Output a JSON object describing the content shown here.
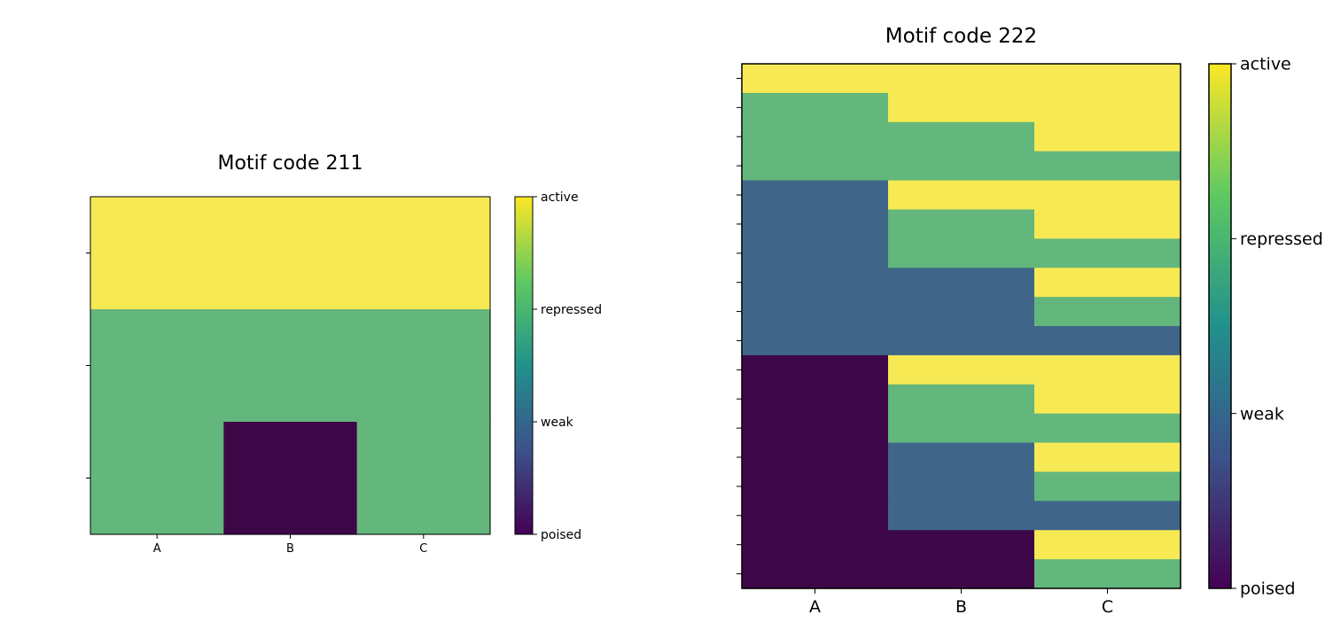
{
  "chart_data": [
    {
      "type": "heatmap",
      "title": "Motif code 211",
      "xlabel": "",
      "ylabel": "",
      "x_categories": [
        "A",
        "B",
        "C"
      ],
      "rows": 3,
      "values": [
        [
          3,
          3,
          3
        ],
        [
          2,
          2,
          2
        ],
        [
          2,
          0,
          2
        ]
      ],
      "colorbar": {
        "ticks": [
          {
            "value": 0,
            "label": "poised"
          },
          {
            "value": 1,
            "label": "weak"
          },
          {
            "value": 2,
            "label": "repressed"
          },
          {
            "value": 3,
            "label": "active"
          }
        ],
        "colors": [
          "#440154",
          "#3b528b",
          "#21918c",
          "#5ec962",
          "#fde725"
        ]
      },
      "cell_colors": {
        "0": "#3d0747",
        "1": "#3f6689",
        "2": "#63b67c",
        "3": "#f6e954"
      }
    },
    {
      "type": "heatmap",
      "title": "Motif code 222",
      "xlabel": "",
      "ylabel": "",
      "x_categories": [
        "A",
        "B",
        "C"
      ],
      "rows": 18,
      "values": [
        [
          3,
          3,
          3
        ],
        [
          2,
          3,
          3
        ],
        [
          2,
          2,
          3
        ],
        [
          2,
          2,
          2
        ],
        [
          1,
          3,
          3
        ],
        [
          1,
          2,
          3
        ],
        [
          1,
          2,
          2
        ],
        [
          1,
          1,
          3
        ],
        [
          1,
          1,
          2
        ],
        [
          1,
          1,
          1
        ],
        [
          0,
          3,
          3
        ],
        [
          0,
          2,
          3
        ],
        [
          0,
          2,
          2
        ],
        [
          0,
          1,
          3
        ],
        [
          0,
          1,
          2
        ],
        [
          0,
          1,
          1
        ],
        [
          0,
          0,
          3
        ],
        [
          0,
          0,
          2
        ]
      ],
      "colorbar": {
        "ticks": [
          {
            "value": 0,
            "label": "poised"
          },
          {
            "value": 1,
            "label": "weak"
          },
          {
            "value": 2,
            "label": "repressed"
          },
          {
            "value": 3,
            "label": "active"
          }
        ],
        "colors": [
          "#440154",
          "#3b528b",
          "#21918c",
          "#5ec962",
          "#fde725"
        ]
      },
      "cell_colors": {
        "0": "#3d0747",
        "1": "#3f6689",
        "2": "#63b67c",
        "3": "#f6e954"
      }
    }
  ]
}
